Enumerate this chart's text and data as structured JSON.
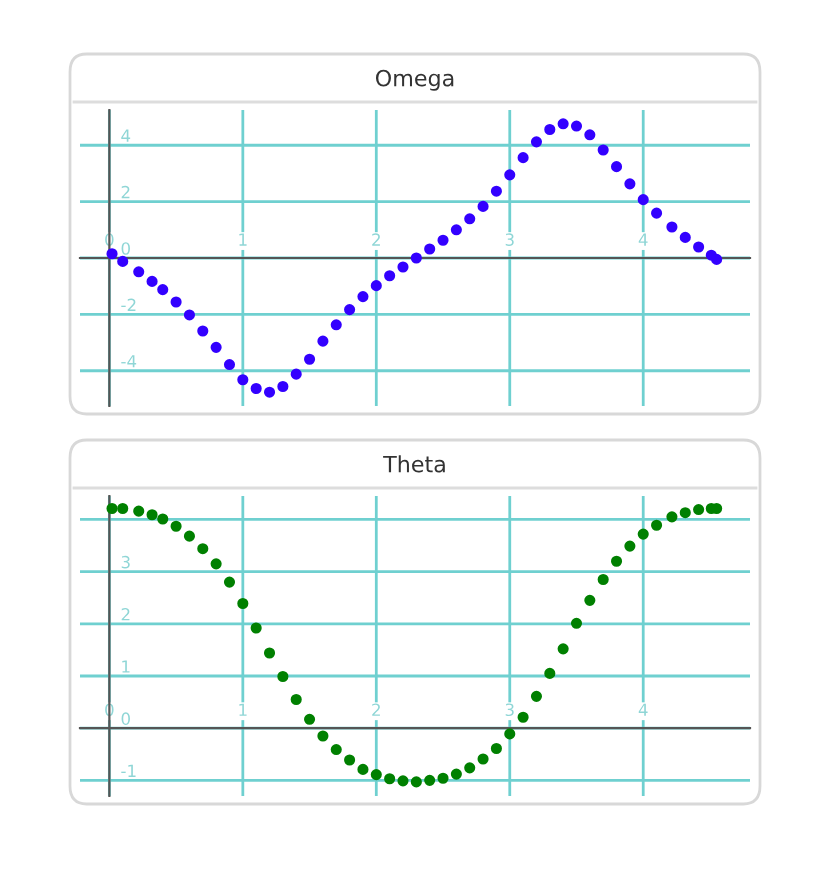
{
  "chart_data": [
    {
      "type": "scatter",
      "title": "Omega",
      "xlim": [
        -0.22,
        4.8
      ],
      "ylim": [
        -5.25,
        5.25
      ],
      "xticks": [
        0,
        1,
        2,
        3,
        4
      ],
      "yticks": [
        -4,
        -2,
        0,
        2,
        4
      ],
      "grid": true,
      "marker": "circle",
      "series": [
        {
          "color": "#3300ff",
          "x": [
            0.02,
            0.1,
            0.22,
            0.32,
            0.4,
            0.5,
            0.6,
            0.7,
            0.8,
            0.9,
            1.0,
            1.1,
            1.2,
            1.3,
            1.4,
            1.5,
            1.6,
            1.7,
            1.8,
            1.9,
            2.0,
            2.1,
            2.2,
            2.3,
            2.4,
            2.5,
            2.6,
            2.7,
            2.8,
            2.9,
            3.0,
            3.1,
            3.2,
            3.3,
            3.4,
            3.5,
            3.6,
            3.7,
            3.8,
            3.9,
            4.0,
            4.1,
            4.215,
            4.315,
            4.415,
            4.51,
            4.55
          ],
          "values": [
            0.15,
            -0.12,
            -0.49,
            -0.83,
            -1.12,
            -1.56,
            -2.02,
            -2.59,
            -3.17,
            -3.78,
            -4.32,
            -4.63,
            -4.76,
            -4.56,
            -4.12,
            -3.59,
            -2.95,
            -2.37,
            -1.83,
            -1.37,
            -0.98,
            -0.63,
            -0.32,
            0.0,
            0.32,
            0.63,
            1.0,
            1.39,
            1.83,
            2.37,
            2.95,
            3.56,
            4.12,
            4.56,
            4.76,
            4.68,
            4.37,
            3.83,
            3.24,
            2.63,
            2.07,
            1.59,
            1.1,
            0.73,
            0.39,
            0.1,
            -0.05
          ]
        }
      ]
    },
    {
      "type": "scatter",
      "title": "Theta",
      "xlim": [
        -0.22,
        4.8
      ],
      "ylim": [
        -1.3,
        4.45
      ],
      "xticks": [
        0,
        1,
        2,
        3,
        4
      ],
      "yticks": [
        -1,
        0,
        1,
        2,
        3,
        {
          "value": 4,
          "label": null
        }
      ],
      "grid": true,
      "marker": "circle",
      "series": [
        {
          "color": "#008000",
          "x": [
            0.02,
            0.1,
            0.22,
            0.32,
            0.4,
            0.5,
            0.6,
            0.7,
            0.8,
            0.9,
            1.0,
            1.1,
            1.2,
            1.3,
            1.4,
            1.5,
            1.6,
            1.7,
            1.8,
            1.9,
            2.0,
            2.1,
            2.2,
            2.3,
            2.4,
            2.5,
            2.6,
            2.7,
            2.8,
            2.9,
            3.0,
            3.1,
            3.2,
            3.3,
            3.4,
            3.5,
            3.6,
            3.7,
            3.8,
            3.9,
            4.0,
            4.1,
            4.215,
            4.315,
            4.415,
            4.51,
            4.55
          ],
          "values": [
            4.21,
            4.21,
            4.16,
            4.09,
            4.01,
            3.87,
            3.68,
            3.44,
            3.15,
            2.8,
            2.39,
            1.92,
            1.44,
            0.99,
            0.55,
            0.17,
            -0.15,
            -0.41,
            -0.61,
            -0.79,
            -0.89,
            -0.97,
            -1.01,
            -1.03,
            -1.0,
            -0.96,
            -0.88,
            -0.76,
            -0.59,
            -0.39,
            -0.11,
            0.21,
            0.61,
            1.05,
            1.52,
            2.01,
            2.45,
            2.85,
            3.2,
            3.49,
            3.72,
            3.89,
            4.05,
            4.13,
            4.19,
            4.21,
            4.21
          ]
        }
      ]
    }
  ]
}
